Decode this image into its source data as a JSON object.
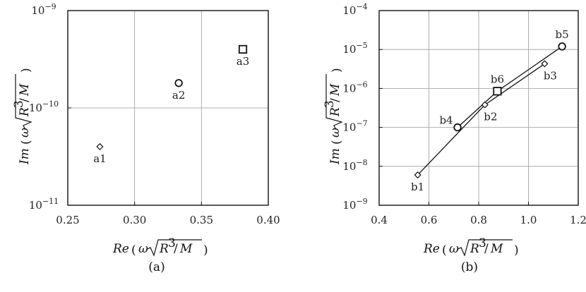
{
  "chart_data": [
    {
      "type": "scatter",
      "caption": "(a)",
      "xlabel": "Re (ω√R³/M)",
      "ylabel": "Im (ω√R³/M)",
      "xlim": [
        0.25,
        0.4
      ],
      "ylim": [
        1e-11,
        1e-09
      ],
      "yscale": "log",
      "grid": true,
      "xticks": [
        "0.25",
        "0.30",
        "0.35",
        "0.40"
      ],
      "yticks": [
        {
          "base": "10",
          "exp": "−9"
        },
        {
          "base": "10",
          "exp": "−10"
        },
        {
          "base": "10",
          "exp": "−11"
        }
      ],
      "points": [
        {
          "label": "a1",
          "x": 0.274,
          "y": 4e-11,
          "marker": "diamond",
          "label_pos": "below"
        },
        {
          "label": "a2",
          "x": 0.333,
          "y": 1.8e-10,
          "marker": "circle",
          "label_pos": "below"
        },
        {
          "label": "a3",
          "x": 0.381,
          "y": 4e-10,
          "marker": "square",
          "label_pos": "below"
        }
      ]
    },
    {
      "type": "scatter",
      "caption": "(b)",
      "xlabel": "Re (ω√R³/M)",
      "ylabel": "Im (ω√R³/M)",
      "xlim": [
        0.4,
        1.2
      ],
      "ylim": [
        1e-09,
        0.0001
      ],
      "yscale": "log",
      "grid": true,
      "xticks": [
        "0.4",
        "0.6",
        "0.8",
        "1.0",
        "1.2"
      ],
      "yticks": [
        {
          "base": "10",
          "exp": "−4"
        },
        {
          "base": "10",
          "exp": "−5"
        },
        {
          "base": "10",
          "exp": "−6"
        },
        {
          "base": "10",
          "exp": "−7"
        },
        {
          "base": "10",
          "exp": "−8"
        },
        {
          "base": "10",
          "exp": "−9"
        }
      ],
      "points": [
        {
          "label": "b1",
          "x": 0.555,
          "y": 6e-09,
          "marker": "diamond",
          "label_pos": "below"
        },
        {
          "label": "b2",
          "x": 0.825,
          "y": 3.8e-07,
          "marker": "diamond",
          "label_pos": "below-right"
        },
        {
          "label": "b3",
          "x": 1.065,
          "y": 4.3e-06,
          "marker": "diamond",
          "label_pos": "below-right"
        },
        {
          "label": "b4",
          "x": 0.715,
          "y": 1e-07,
          "marker": "circle",
          "label_pos": "left"
        },
        {
          "label": "b5",
          "x": 1.135,
          "y": 1.2e-05,
          "marker": "circle",
          "label_pos": "above"
        },
        {
          "label": "b6",
          "x": 0.875,
          "y": 8.5e-07,
          "marker": "square",
          "label_pos": "above"
        }
      ],
      "lines": [
        [
          "b1",
          "b2",
          "b3"
        ],
        [
          "b4",
          "b6",
          "b5"
        ]
      ]
    }
  ]
}
